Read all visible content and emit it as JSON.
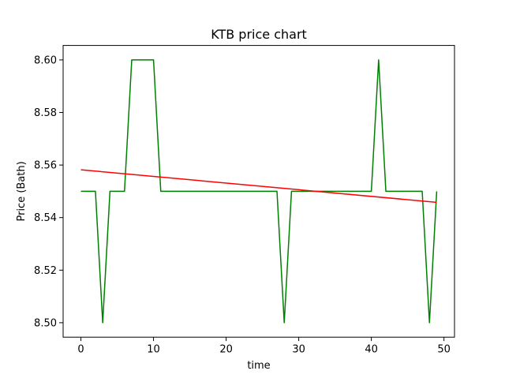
{
  "chart_data": {
    "type": "line",
    "title": "KTB price chart",
    "xlabel": "time",
    "ylabel": "Price (Bath)",
    "xlim": [
      -2.45,
      51.45
    ],
    "ylim": [
      8.4945,
      8.6055
    ],
    "x_ticks": [
      0,
      10,
      20,
      30,
      40,
      50
    ],
    "y_ticks": [
      8.5,
      8.52,
      8.54,
      8.56,
      8.58,
      8.6
    ],
    "y_tick_labels": [
      "8.50",
      "8.52",
      "8.54",
      "8.56",
      "8.58",
      "8.60"
    ],
    "grid": false,
    "series": [
      {
        "color": "#008000",
        "x": [
          0,
          1,
          2,
          3,
          4,
          5,
          6,
          7,
          8,
          9,
          10,
          11,
          12,
          13,
          14,
          15,
          16,
          17,
          18,
          19,
          20,
          21,
          22,
          23,
          24,
          25,
          26,
          27,
          28,
          29,
          30,
          31,
          32,
          33,
          34,
          35,
          36,
          37,
          38,
          39,
          40,
          41,
          42,
          43,
          44,
          45,
          46,
          47,
          48,
          49
        ],
        "y": [
          8.55,
          8.55,
          8.55,
          8.5,
          8.55,
          8.55,
          8.55,
          8.6,
          8.6,
          8.6,
          8.6,
          8.55,
          8.55,
          8.55,
          8.55,
          8.55,
          8.55,
          8.55,
          8.55,
          8.55,
          8.55,
          8.55,
          8.55,
          8.55,
          8.55,
          8.55,
          8.55,
          8.55,
          8.5,
          8.55,
          8.55,
          8.55,
          8.55,
          8.55,
          8.55,
          8.55,
          8.55,
          8.55,
          8.55,
          8.55,
          8.55,
          8.6,
          8.55,
          8.55,
          8.55,
          8.55,
          8.55,
          8.55,
          8.5,
          8.55
        ]
      },
      {
        "color": "#ff0000",
        "x": [
          0,
          49
        ],
        "y": [
          8.5582,
          8.5458
        ]
      }
    ]
  }
}
